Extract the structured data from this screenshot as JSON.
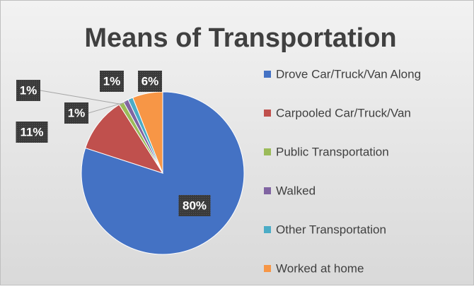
{
  "chart_data": {
    "type": "pie",
    "title": "Means of Transportation",
    "categories": [
      "Drove Car/Truck/Van Along",
      "Carpooled Car/Truck/Van",
      "Public Transportation",
      "Walked",
      "Other Transportation",
      "Worked at home"
    ],
    "values": [
      80,
      11,
      1,
      1,
      1,
      6
    ],
    "value_labels": [
      "80%",
      "11%",
      "1%",
      "1%",
      "1%",
      "6%"
    ],
    "colors": [
      "#4472c4",
      "#c0504d",
      "#9bbb59",
      "#8064a2",
      "#4bacc6",
      "#f79646"
    ],
    "legend": "right"
  }
}
